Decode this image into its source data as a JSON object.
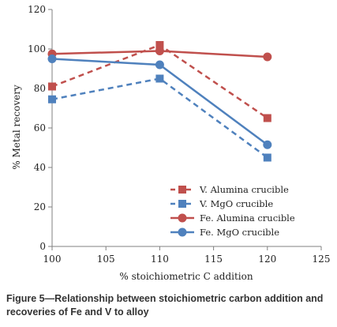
{
  "chart_data": {
    "type": "line",
    "xlabel": "% stoichiometric C addition",
    "ylabel": "% Metal  recovery",
    "xlim": [
      100,
      125
    ],
    "ylim": [
      0,
      120
    ],
    "xticks": [
      100,
      105,
      110,
      115,
      120,
      125
    ],
    "yticks": [
      0,
      20,
      40,
      60,
      80,
      100,
      120
    ],
    "grid": false,
    "legend_position": "bottom-right",
    "series": [
      {
        "name": "V. Alumina crucible",
        "color": "#c0504d",
        "dash": true,
        "marker": "square",
        "x": [
          100,
          110,
          120
        ],
        "y": [
          81,
          102,
          65
        ]
      },
      {
        "name": "V. MgO crucible",
        "color": "#4f81bd",
        "dash": true,
        "marker": "square",
        "x": [
          100,
          110,
          120
        ],
        "y": [
          74.5,
          85,
          45
        ]
      },
      {
        "name": "Fe. Alumina crucible",
        "color": "#c0504d",
        "dash": false,
        "marker": "circle",
        "x": [
          100,
          110,
          120
        ],
        "y": [
          97.5,
          99,
          96
        ]
      },
      {
        "name": "Fe. MgO crucible",
        "color": "#4f81bd",
        "dash": false,
        "marker": "circle",
        "x": [
          100,
          110,
          120
        ],
        "y": [
          95,
          92,
          51.5
        ]
      }
    ]
  },
  "caption": "Figure 5—Relationship between stoichiometric carbon addition and recoveries of Fe and V to alloy"
}
